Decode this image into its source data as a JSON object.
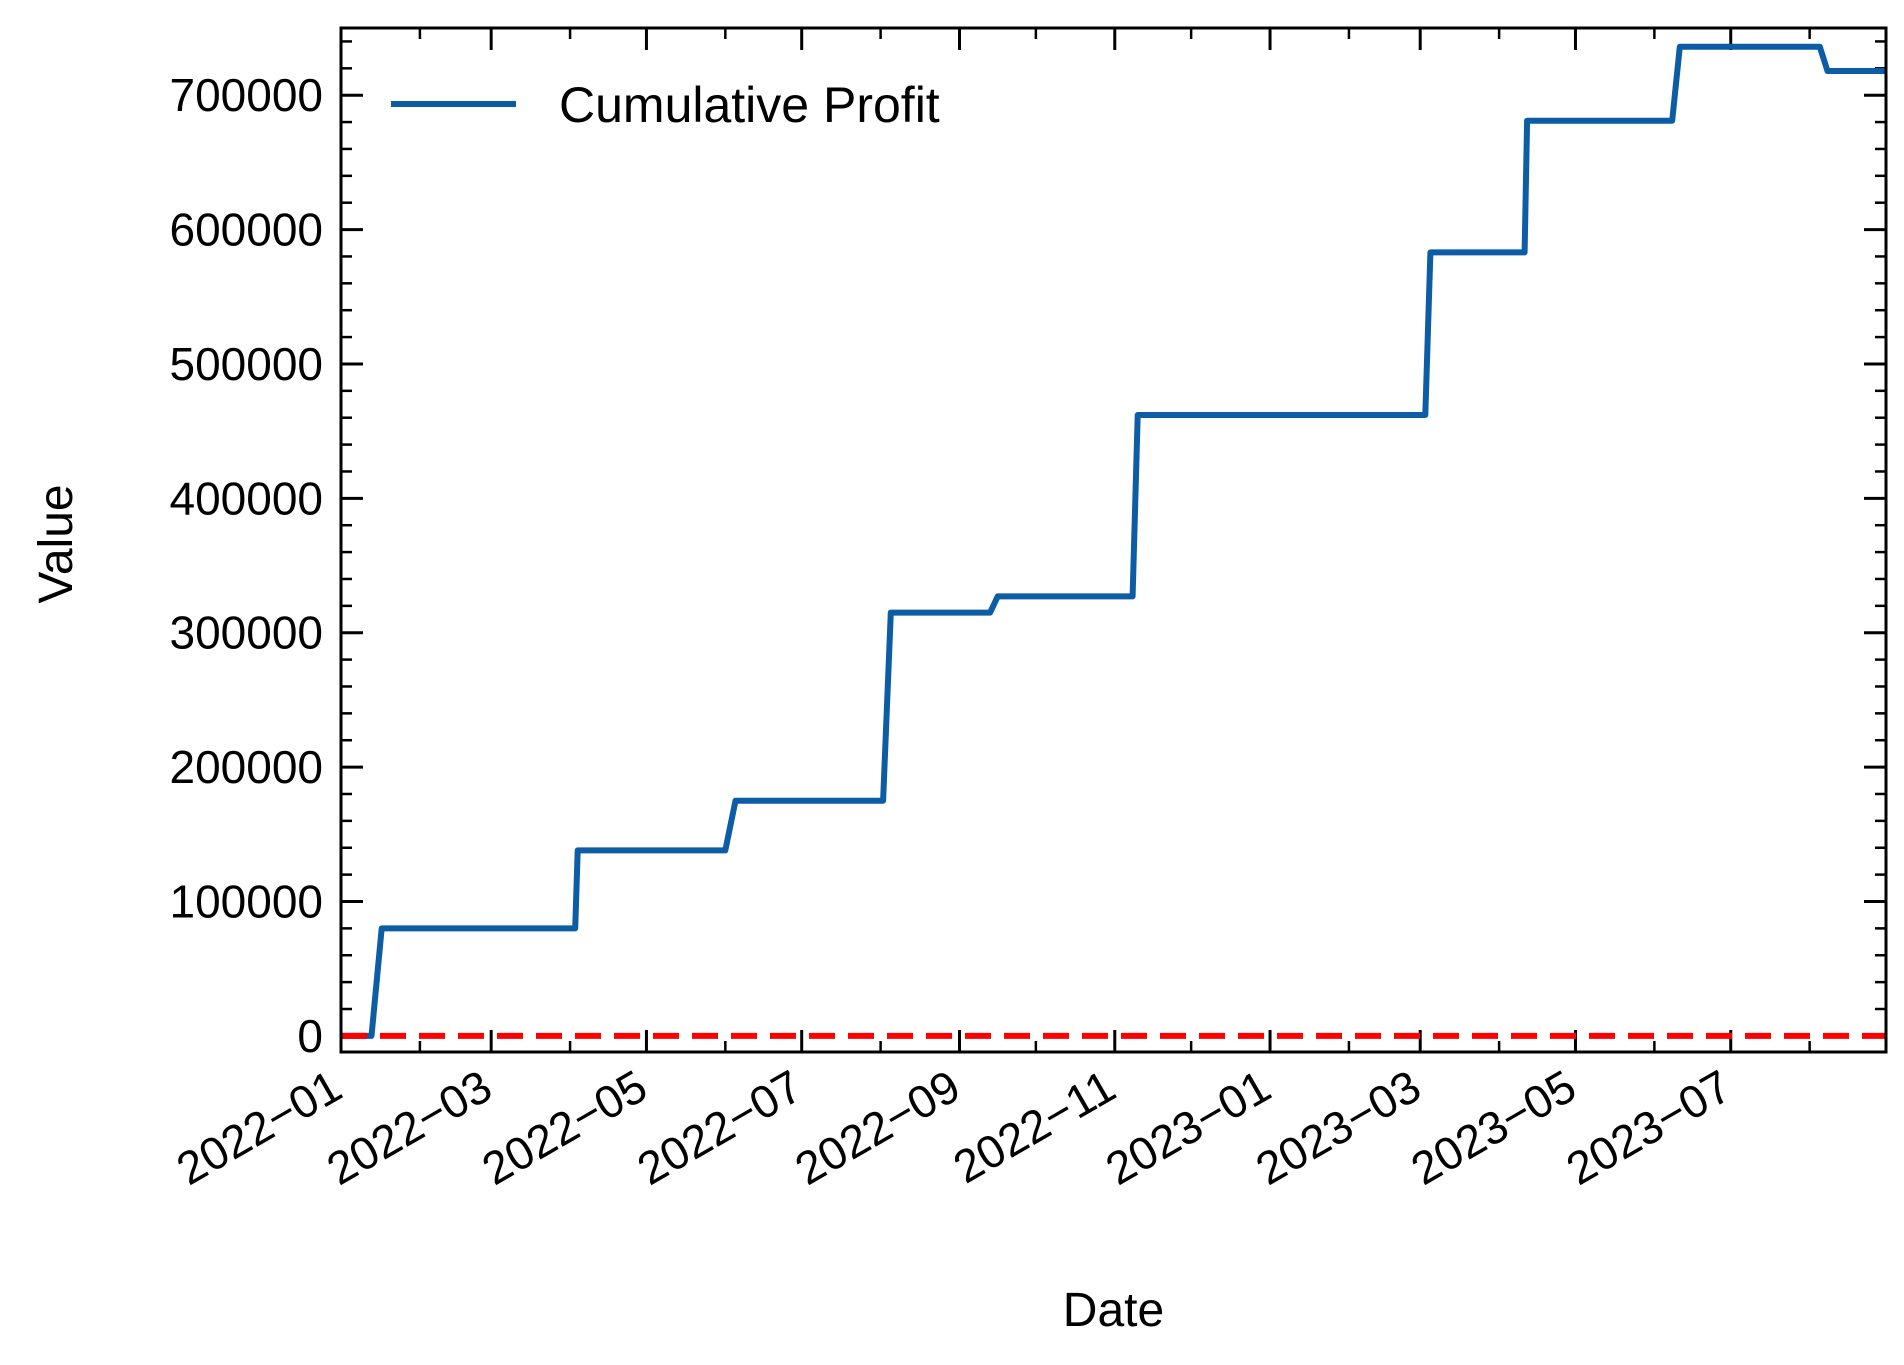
{
  "chart_data": {
    "type": "line",
    "title": "",
    "xlabel": "Date",
    "ylabel": "Value",
    "x_axis": "date",
    "xlim": [
      "2022-01-01",
      "2023-08-31"
    ],
    "ylim": [
      -12000,
      750000
    ],
    "x_tick_labels": [
      "2022−01",
      "2022−03",
      "2022−05",
      "2022−07",
      "2022−09",
      "2022−11",
      "2023−01",
      "2023−03",
      "2023−05",
      "2023−07"
    ],
    "x_ticks": [
      "2022-01-01",
      "2022-03-01",
      "2022-05-01",
      "2022-07-01",
      "2022-09-01",
      "2022-11-01",
      "2023-01-01",
      "2023-03-01",
      "2023-05-01",
      "2023-07-01"
    ],
    "y_ticks": [
      0,
      100000,
      200000,
      300000,
      400000,
      500000,
      600000,
      700000
    ],
    "y_tick_labels": [
      "0",
      "100000",
      "200000",
      "300000",
      "400000",
      "500000",
      "600000",
      "700000"
    ],
    "legend": {
      "placement": "upper-left"
    },
    "grid": false,
    "series": [
      {
        "name": "Cumulative Profit",
        "color": "#0c5da5",
        "style": "solid",
        "x": [
          "2022-01-01",
          "2022-01-13",
          "2022-01-17",
          "2022-04-03",
          "2022-04-04",
          "2022-06-01",
          "2022-06-05",
          "2022-08-02",
          "2022-08-05",
          "2022-09-13",
          "2022-09-16",
          "2022-11-08",
          "2022-11-10",
          "2023-03-03",
          "2023-03-05",
          "2023-04-11",
          "2023-04-12",
          "2023-06-08",
          "2023-06-11",
          "2023-08-05",
          "2023-08-08",
          "2023-08-31"
        ],
        "y": [
          0,
          0,
          80000,
          80000,
          138000,
          138000,
          175000,
          175000,
          315000,
          315000,
          327000,
          327000,
          462000,
          462000,
          583000,
          583000,
          681000,
          681000,
          736000,
          736000,
          718000,
          718000
        ]
      },
      {
        "name": "",
        "color": "#ff0000",
        "style": "dashed",
        "x": [
          "2022-01-01",
          "2023-08-31"
        ],
        "y": [
          0,
          0
        ]
      }
    ]
  }
}
